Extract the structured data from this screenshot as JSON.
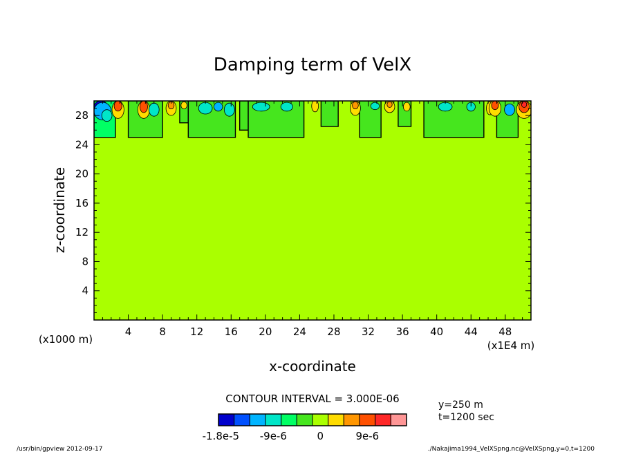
{
  "chart_data": {
    "type": "heatmap",
    "title": "Damping term of VelX",
    "xlabel": "x-coordinate",
    "ylabel": "z-coordinate",
    "x_unit": "(x1E4 m)",
    "y_unit": "(x1000 m)",
    "xlim": [
      0,
      51
    ],
    "ylim": [
      0,
      30
    ],
    "x_ticks": [
      4,
      8,
      12,
      16,
      20,
      24,
      28,
      32,
      36,
      40,
      44,
      48
    ],
    "y_ticks": [
      4,
      8,
      12,
      16,
      20,
      24,
      28
    ],
    "background_level": 0,
    "damping_layer_base": 25,
    "contour_interval": "CONTOUR INTERVAL = 3.000E-06",
    "colorbar": {
      "colors": [
        "#0000cc",
        "#0050ff",
        "#00b4ff",
        "#00e6c8",
        "#00ff64",
        "#46e61e",
        "#aaff00",
        "#ffdc00",
        "#ff9600",
        "#ff5000",
        "#ff2828",
        "#ff9696"
      ],
      "labels": [
        "-1.8e-5",
        "-9e-6",
        "0",
        "9e-6"
      ],
      "label_positions": [
        0,
        3,
        6,
        9
      ]
    },
    "columns": [
      {
        "x0": 0.0,
        "x1": 2.5,
        "color": "#00ff64",
        "bottom": 25
      },
      {
        "x0": 4.0,
        "x1": 8.0,
        "color": "#46e61e",
        "bottom": 25
      },
      {
        "x0": 10.0,
        "x1": 11.0,
        "color": "#46e61e",
        "bottom": 27
      },
      {
        "x0": 11.0,
        "x1": 16.5,
        "color": "#46e61e",
        "bottom": 25
      },
      {
        "x0": 17.0,
        "x1": 18.0,
        "color": "#46e61e",
        "bottom": 26
      },
      {
        "x0": 18.0,
        "x1": 24.5,
        "color": "#46e61e",
        "bottom": 25
      },
      {
        "x0": 26.5,
        "x1": 28.5,
        "color": "#46e61e",
        "bottom": 26.5
      },
      {
        "x0": 31.0,
        "x1": 33.5,
        "color": "#46e61e",
        "bottom": 25
      },
      {
        "x0": 35.5,
        "x1": 37.0,
        "color": "#46e61e",
        "bottom": 26.5
      },
      {
        "x0": 38.5,
        "x1": 45.5,
        "color": "#46e61e",
        "bottom": 25
      },
      {
        "x0": 47.0,
        "x1": 49.5,
        "color": "#46e61e",
        "bottom": 25
      }
    ],
    "cells": [
      {
        "x": 0.8,
        "z": 29.2,
        "rx": 0.8,
        "rz": 0.8,
        "color": "#0000cc"
      },
      {
        "x": 1.0,
        "z": 28.6,
        "rx": 1.0,
        "rz": 1.2,
        "color": "#00b4ff"
      },
      {
        "x": 1.5,
        "z": 28.0,
        "rx": 0.6,
        "rz": 0.8,
        "color": "#00e6c8"
      },
      {
        "x": 2.8,
        "z": 28.8,
        "rx": 0.7,
        "rz": 1.2,
        "color": "#ffdc00"
      },
      {
        "x": 2.8,
        "z": 29.3,
        "rx": 0.45,
        "rz": 0.7,
        "color": "#ff5000"
      },
      {
        "x": 5.8,
        "z": 28.8,
        "rx": 0.7,
        "rz": 1.2,
        "color": "#ffdc00"
      },
      {
        "x": 5.8,
        "z": 29.2,
        "rx": 0.45,
        "rz": 0.8,
        "color": "#ff5000"
      },
      {
        "x": 7.0,
        "z": 28.8,
        "rx": 0.6,
        "rz": 0.9,
        "color": "#00e6c8"
      },
      {
        "x": 9.0,
        "z": 29.0,
        "rx": 0.6,
        "rz": 1.0,
        "color": "#ffdc00"
      },
      {
        "x": 9.0,
        "z": 29.4,
        "rx": 0.35,
        "rz": 0.5,
        "color": "#ff9600"
      },
      {
        "x": 10.5,
        "z": 29.4,
        "rx": 0.35,
        "rz": 0.5,
        "color": "#ffdc00"
      },
      {
        "x": 13.0,
        "z": 29.0,
        "rx": 0.8,
        "rz": 0.8,
        "color": "#00e6c8"
      },
      {
        "x": 14.5,
        "z": 29.2,
        "rx": 0.5,
        "rz": 0.6,
        "color": "#00b4ff"
      },
      {
        "x": 15.8,
        "z": 28.8,
        "rx": 0.6,
        "rz": 0.9,
        "color": "#00e6c8"
      },
      {
        "x": 19.5,
        "z": 29.2,
        "rx": 1.0,
        "rz": 0.6,
        "color": "#00e6c8"
      },
      {
        "x": 22.5,
        "z": 29.2,
        "rx": 0.7,
        "rz": 0.6,
        "color": "#00e6c8"
      },
      {
        "x": 25.8,
        "z": 29.3,
        "rx": 0.4,
        "rz": 0.8,
        "color": "#ffdc00"
      },
      {
        "x": 30.5,
        "z": 29.0,
        "rx": 0.6,
        "rz": 1.0,
        "color": "#ffdc00"
      },
      {
        "x": 30.5,
        "z": 29.4,
        "rx": 0.35,
        "rz": 0.5,
        "color": "#ff9600"
      },
      {
        "x": 32.8,
        "z": 29.3,
        "rx": 0.5,
        "rz": 0.5,
        "color": "#00e6c8"
      },
      {
        "x": 34.5,
        "z": 29.2,
        "rx": 0.6,
        "rz": 0.8,
        "color": "#ffdc00"
      },
      {
        "x": 34.5,
        "z": 29.5,
        "rx": 0.3,
        "rz": 0.4,
        "color": "#ff9600"
      },
      {
        "x": 36.5,
        "z": 29.2,
        "rx": 0.4,
        "rz": 0.6,
        "color": "#ffdc00"
      },
      {
        "x": 41.0,
        "z": 29.2,
        "rx": 0.8,
        "rz": 0.6,
        "color": "#00e6c8"
      },
      {
        "x": 44.0,
        "z": 29.2,
        "rx": 0.5,
        "rz": 0.6,
        "color": "#00e6c8"
      },
      {
        "x": 46.2,
        "z": 29.0,
        "rx": 0.4,
        "rz": 0.9,
        "color": "#ffdc00"
      },
      {
        "x": 46.8,
        "z": 29.0,
        "rx": 0.7,
        "rz": 1.1,
        "color": "#ffdc00"
      },
      {
        "x": 46.8,
        "z": 29.4,
        "rx": 0.4,
        "rz": 0.6,
        "color": "#ff5000"
      },
      {
        "x": 48.5,
        "z": 28.8,
        "rx": 0.6,
        "rz": 0.8,
        "color": "#00b4ff"
      },
      {
        "x": 50.2,
        "z": 28.8,
        "rx": 0.9,
        "rz": 1.2,
        "color": "#ffdc00"
      },
      {
        "x": 50.2,
        "z": 29.2,
        "rx": 0.6,
        "rz": 0.8,
        "color": "#ff5000"
      },
      {
        "x": 50.2,
        "z": 29.5,
        "rx": 0.3,
        "rz": 0.4,
        "color": "#ff2828"
      }
    ]
  },
  "annotations": {
    "position": "y=250 m",
    "time": "t=1200 sec",
    "program": "/usr/bin/gpview   2012-09-17",
    "source": "./Nakajima1994_VelXSpng.nc@VelXSpng,y=0,t=1200"
  }
}
